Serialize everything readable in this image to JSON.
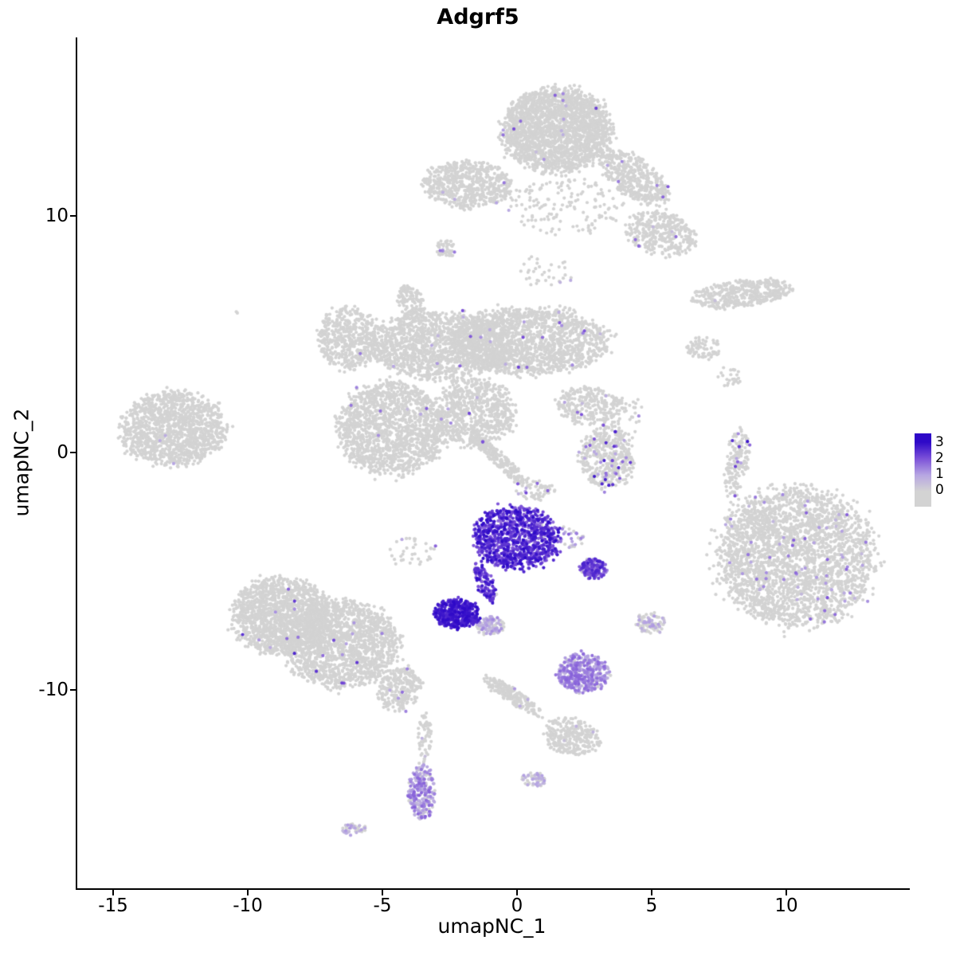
{
  "chart_data": {
    "type": "scatter",
    "title": "Adgrf5",
    "xlabel": "umapNC_1",
    "ylabel": "umapNC_2",
    "xlim": [
      -16.4,
      14.5
    ],
    "ylim": [
      -18.4,
      17.5
    ],
    "grid": false,
    "legend_position": "right",
    "x_ticks": [
      {
        "v": -15,
        "label": "-15"
      },
      {
        "v": -10,
        "label": "-10"
      },
      {
        "v": -5,
        "label": "-5"
      },
      {
        "v": 0,
        "label": "0"
      },
      {
        "v": 5,
        "label": "5"
      },
      {
        "v": 10,
        "label": "10"
      }
    ],
    "y_ticks": [
      {
        "v": 10,
        "label": "10"
      },
      {
        "v": 0,
        "label": "0"
      },
      {
        "v": -10,
        "label": "-10"
      }
    ],
    "color_scale": {
      "stops": [
        "#d3d3d3",
        "#b7a6e2",
        "#7b50d8",
        "#2e09c8"
      ],
      "values": [
        0,
        1,
        2,
        3
      ],
      "labels": [
        "3",
        "2",
        "1",
        "0"
      ]
    },
    "point_radius_px": 2.1,
    "approx_total_points": 21800,
    "clusters": [
      {
        "name": "top-main",
        "cx": 1.4,
        "cy": 13.6,
        "rx": 2.0,
        "ry": 1.75,
        "angle": 0,
        "n": 2200,
        "expr": 0.01,
        "vmin": 0.5,
        "vmax": 2.2
      },
      {
        "name": "top-arm-ne",
        "cx": 4.3,
        "cy": 11.6,
        "rx": 1.5,
        "ry": 0.75,
        "angle": -40,
        "n": 450,
        "expr": 0.012,
        "vmin": 0.5,
        "vmax": 2.0
      },
      {
        "name": "top-arm-e",
        "cx": 5.3,
        "cy": 9.2,
        "rx": 1.3,
        "ry": 0.9,
        "angle": -20,
        "n": 350,
        "expr": 0.015,
        "vmin": 0.5,
        "vmax": 2.0
      },
      {
        "name": "top-left-blob",
        "cx": -1.9,
        "cy": 11.3,
        "rx": 1.6,
        "ry": 1.0,
        "angle": 0,
        "n": 600,
        "expr": 0.006,
        "vmin": 0.5,
        "vmax": 1.6
      },
      {
        "name": "top-under-scatter",
        "cx": 1.8,
        "cy": 10.4,
        "rx": 2.2,
        "ry": 1.2,
        "angle": 0,
        "n": 150,
        "expr": 0.01,
        "vmin": 0.5,
        "vmax": 1.5
      },
      {
        "name": "upper-sparse-mid",
        "cx": 0.9,
        "cy": 7.6,
        "rx": 1.2,
        "ry": 0.6,
        "angle": 0,
        "n": 35,
        "expr": 0.03,
        "vmin": 0.5,
        "vmax": 1.5
      },
      {
        "name": "tiny-left-top",
        "cx": -2.7,
        "cy": 8.6,
        "rx": 0.38,
        "ry": 0.38,
        "angle": 0,
        "n": 45,
        "expr": 0.06,
        "vmin": 0.4,
        "vmax": 1.6
      },
      {
        "name": "lone-left-dot",
        "cx": -10.5,
        "cy": 5.9,
        "rx": 0.06,
        "ry": 0.06,
        "angle": 0,
        "n": 2,
        "expr": 0,
        "vmin": 0,
        "vmax": 0
      },
      {
        "name": "mid-B1",
        "cx": -6.3,
        "cy": 4.8,
        "rx": 1.15,
        "ry": 1.3,
        "angle": 0,
        "n": 500,
        "expr": 0.006,
        "vmin": 0.6,
        "vmax": 2.2
      },
      {
        "name": "mid-B2",
        "cx": -2.9,
        "cy": 4.5,
        "rx": 2.6,
        "ry": 1.4,
        "angle": 0,
        "n": 1400,
        "expr": 0.006,
        "vmin": 0.5,
        "vmax": 2.0
      },
      {
        "name": "mid-B3",
        "cx": 0.4,
        "cy": 4.7,
        "rx": 2.9,
        "ry": 1.4,
        "angle": 0,
        "n": 1600,
        "expr": 0.01,
        "vmin": 0.5,
        "vmax": 2.2
      },
      {
        "name": "mid-B4",
        "cx": -4.7,
        "cy": 1.0,
        "rx": 2.0,
        "ry": 1.9,
        "angle": 0,
        "n": 1500,
        "expr": 0.005,
        "vmin": 0.5,
        "vmax": 2.0
      },
      {
        "name": "mid-B5",
        "cx": -1.6,
        "cy": 1.7,
        "rx": 1.4,
        "ry": 1.4,
        "angle": 0,
        "n": 700,
        "expr": 0.012,
        "vmin": 0.6,
        "vmax": 2.2
      },
      {
        "name": "mid-arm-up",
        "cx": -4.0,
        "cy": 6.3,
        "rx": 0.5,
        "ry": 0.8,
        "angle": 20,
        "n": 120,
        "expr": 0.01,
        "vmin": 0.5,
        "vmax": 1.5
      },
      {
        "name": "mid-streak-down",
        "cx": -0.7,
        "cy": -0.35,
        "rx": 1.5,
        "ry": 0.28,
        "angle": -47,
        "n": 220,
        "expr": 0.012,
        "vmin": 0.5,
        "vmax": 2.0
      },
      {
        "name": "below-streak-sparse",
        "cx": 0.6,
        "cy": -1.6,
        "rx": 0.7,
        "ry": 0.5,
        "angle": 0,
        "n": 60,
        "expr": 0.06,
        "vmin": 0.6,
        "vmax": 2.2
      },
      {
        "name": "right-mid-blob1",
        "cx": 2.6,
        "cy": 2.0,
        "rx": 1.2,
        "ry": 0.8,
        "angle": 0,
        "n": 250,
        "expr": 0.02,
        "vmin": 0.5,
        "vmax": 2.0
      },
      {
        "name": "right-mid-blob2",
        "cx": 3.3,
        "cy": -0.2,
        "rx": 1.0,
        "ry": 1.3,
        "angle": 0,
        "n": 450,
        "expr": 0.08,
        "vmin": 0.8,
        "vmax": 2.8
      },
      {
        "name": "right-mid-sparse",
        "cx": 4.0,
        "cy": 1.5,
        "rx": 0.8,
        "ry": 0.8,
        "angle": 0,
        "n": 40,
        "expr": 0.02,
        "vmin": 0.5,
        "vmax": 1.5
      },
      {
        "name": "far-left",
        "cx": -12.8,
        "cy": 1.0,
        "rx": 1.9,
        "ry": 1.55,
        "angle": 5,
        "n": 1300,
        "expr": 0.002,
        "vmin": 0.5,
        "vmax": 2.0
      },
      {
        "name": "right-elongated",
        "cx": 8.3,
        "cy": 6.7,
        "rx": 1.85,
        "ry": 0.55,
        "angle": 8,
        "n": 420,
        "expr": 0.004,
        "vmin": 0.4,
        "vmax": 1.2
      },
      {
        "name": "right-small",
        "cx": 6.9,
        "cy": 4.4,
        "rx": 0.65,
        "ry": 0.45,
        "angle": 0,
        "n": 70,
        "expr": 0,
        "vmin": 0,
        "vmax": 0
      },
      {
        "name": "right-tiny-sparse",
        "cx": 7.8,
        "cy": 3.2,
        "rx": 0.5,
        "ry": 0.4,
        "angle": 0,
        "n": 25,
        "expr": 0,
        "vmin": 0,
        "vmax": 0
      },
      {
        "name": "right-strip",
        "cx": 8.1,
        "cy": -0.4,
        "rx": 0.4,
        "ry": 1.5,
        "angle": -8,
        "n": 160,
        "expr": 0.04,
        "vmin": 1.0,
        "vmax": 3.0
      },
      {
        "name": "right-big",
        "cx": 10.3,
        "cy": -4.4,
        "rx": 2.9,
        "ry": 2.9,
        "angle": 0,
        "n": 2600,
        "expr": 0.025,
        "vmin": 0.5,
        "vmax": 2.0
      },
      {
        "name": "right-big-west-sparse",
        "cx": 8.6,
        "cy": -3.5,
        "rx": 1.0,
        "ry": 1.5,
        "angle": 0,
        "n": 120,
        "expr": 0.03,
        "vmin": 0.5,
        "vmax": 1.5
      },
      {
        "name": "bottom-left-L1",
        "cx": -8.8,
        "cy": -6.9,
        "rx": 1.8,
        "ry": 1.6,
        "angle": 0,
        "n": 1400,
        "expr": 0.006,
        "vmin": 0.8,
        "vmax": 2.6
      },
      {
        "name": "bottom-left-L2",
        "cx": -6.6,
        "cy": -8.1,
        "rx": 2.1,
        "ry": 1.8,
        "angle": 0,
        "n": 1600,
        "expr": 0.006,
        "vmin": 0.8,
        "vmax": 2.6
      },
      {
        "name": "bottom-left-arm",
        "cx": -4.4,
        "cy": -10.0,
        "rx": 0.75,
        "ry": 0.95,
        "angle": -30,
        "n": 260,
        "expr": 0.02,
        "vmin": 0.6,
        "vmax": 2.0
      },
      {
        "name": "between-L-G-sparse",
        "cx": -3.9,
        "cy": -4.2,
        "rx": 0.9,
        "ry": 0.7,
        "angle": 0,
        "n": 35,
        "expr": 0.08,
        "vmin": 0.6,
        "vmax": 2.0
      },
      {
        "name": "trail-down",
        "cx": -3.5,
        "cy": -12.0,
        "rx": 0.25,
        "ry": 1.0,
        "angle": 0,
        "n": 60,
        "expr": 0.05,
        "vmin": 0.4,
        "vmax": 1.2
      },
      {
        "name": "mid-bottom-streak",
        "cx": -0.2,
        "cy": -10.3,
        "rx": 1.3,
        "ry": 0.3,
        "angle": -38,
        "n": 200,
        "expr": 0.012,
        "vmin": 0.4,
        "vmax": 1.2
      },
      {
        "name": "mid-bottom-blob",
        "cx": 2.0,
        "cy": -12.0,
        "rx": 1.05,
        "ry": 0.75,
        "angle": -15,
        "n": 280,
        "expr": 0.02,
        "vmin": 0.4,
        "vmax": 1.2
      },
      {
        "name": "mid-bottom-tiny",
        "cx": 0.6,
        "cy": -13.8,
        "rx": 0.45,
        "ry": 0.3,
        "angle": 0,
        "n": 50,
        "expr": 0.5,
        "vmin": 0.3,
        "vmax": 1.1
      },
      {
        "name": "pair-right-small",
        "cx": 4.9,
        "cy": -7.2,
        "rx": 0.55,
        "ry": 0.45,
        "angle": 0,
        "n": 100,
        "expr": 0.3,
        "vmin": 0.3,
        "vmax": 1.2
      },
      {
        "name": "expr-main",
        "cx": -0.1,
        "cy": -3.6,
        "rx": 1.55,
        "ry": 1.3,
        "angle": 0,
        "n": 1000,
        "expr": 0.97,
        "vmin": 1.6,
        "vmax": 3.0
      },
      {
        "name": "expr-main-tail",
        "cx": -1.25,
        "cy": -5.5,
        "rx": 0.3,
        "ry": 0.85,
        "angle": 20,
        "n": 130,
        "expr": 0.95,
        "vmin": 1.5,
        "vmax": 3.0
      },
      {
        "name": "expr-right-of-main",
        "cx": 1.9,
        "cy": -3.6,
        "rx": 0.5,
        "ry": 0.5,
        "angle": 0,
        "n": 30,
        "expr": 0.5,
        "vmin": 0.5,
        "vmax": 2.0
      },
      {
        "name": "expr-deep-blob",
        "cx": -2.3,
        "cy": -6.8,
        "rx": 0.85,
        "ry": 0.6,
        "angle": 0,
        "n": 450,
        "expr": 0.97,
        "vmin": 2.2,
        "vmax": 3.0
      },
      {
        "name": "expr-deep-neighbor",
        "cx": -1.05,
        "cy": -7.3,
        "rx": 0.5,
        "ry": 0.38,
        "angle": 0,
        "n": 110,
        "expr": 0.55,
        "vmin": 0.3,
        "vmax": 1.4
      },
      {
        "name": "expr-small-mid",
        "cx": 2.75,
        "cy": -4.9,
        "rx": 0.5,
        "ry": 0.42,
        "angle": 0,
        "n": 140,
        "expr": 0.95,
        "vmin": 1.3,
        "vmax": 2.8
      },
      {
        "name": "expr-light-cluster",
        "cx": 2.4,
        "cy": -9.3,
        "rx": 0.95,
        "ry": 0.8,
        "angle": 0,
        "n": 400,
        "expr": 0.9,
        "vmin": 0.6,
        "vmax": 1.8
      },
      {
        "name": "expr-bottom-strip",
        "cx": -3.6,
        "cy": -14.3,
        "rx": 0.5,
        "ry": 1.15,
        "angle": 0,
        "n": 260,
        "expr": 0.8,
        "vmin": 0.3,
        "vmax": 1.8
      },
      {
        "name": "expr-bottom-tiny",
        "cx": -6.1,
        "cy": -15.9,
        "rx": 0.45,
        "ry": 0.28,
        "angle": 0,
        "n": 45,
        "expr": 0.5,
        "vmin": 0.4,
        "vmax": 1.2
      }
    ]
  }
}
